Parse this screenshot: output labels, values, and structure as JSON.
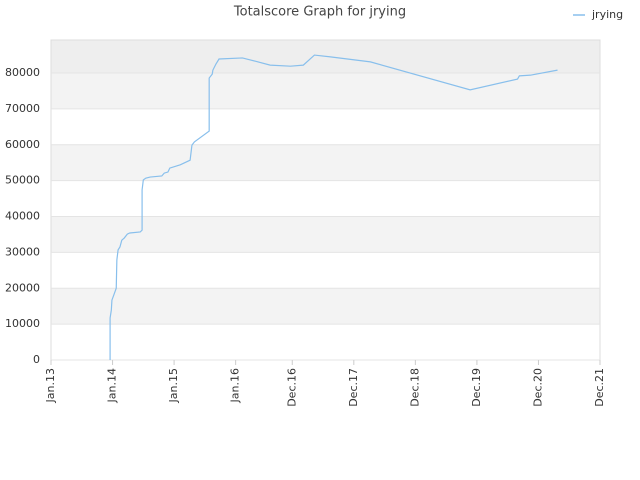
{
  "chart_data": {
    "type": "line",
    "title": "Totalscore Graph for jrying",
    "x": [
      2013.96,
      2013.96,
      2013.98,
      2013.99,
      2014.02,
      2014.06,
      2014.07,
      2014.09,
      2014.12,
      2014.15,
      2014.19,
      2014.24,
      2014.28,
      2014.45,
      2014.48,
      2014.48,
      2014.5,
      2014.54,
      2014.61,
      2014.8,
      2014.84,
      2014.9,
      2014.93,
      2015.1,
      2015.26,
      2015.29,
      2015.33,
      2015.57,
      2015.57,
      2015.62,
      2015.63,
      2015.68,
      2015.73,
      2016.11,
      2016.32,
      2016.56,
      2016.89,
      2017.1,
      2017.28,
      2017.54,
      2018.19,
      2019.81,
      2020.58,
      2020.61,
      2020.79,
      2021.23
    ],
    "series": [
      {
        "name": "jrying",
        "color": "#88bfec",
        "values": [
          0,
          11700,
          13900,
          16700,
          18100,
          20000,
          27900,
          30700,
          31500,
          33400,
          34000,
          35100,
          35400,
          35700,
          36200,
          47400,
          50200,
          50700,
          51000,
          51300,
          52100,
          52400,
          53500,
          54400,
          55700,
          59900,
          60800,
          63800,
          78600,
          79700,
          80800,
          82500,
          83900,
          84200,
          83300,
          82200,
          81900,
          82200,
          85000,
          84500,
          83100,
          75300,
          78300,
          79200,
          79400,
          80800
        ]
      }
    ],
    "xlim": [
      2013.0,
      2021.92
    ],
    "xticks": [
      {
        "value": 2013.0,
        "label": "Jan.13"
      },
      {
        "value": 2014.0,
        "label": "Jan.14"
      },
      {
        "value": 2015.0,
        "label": "Jan.15"
      },
      {
        "value": 2016.0,
        "label": "Jan.16"
      },
      {
        "value": 2016.92,
        "label": "Dec.16"
      },
      {
        "value": 2017.92,
        "label": "Dec.17"
      },
      {
        "value": 2018.92,
        "label": "Dec.18"
      },
      {
        "value": 2019.92,
        "label": "Dec.19"
      },
      {
        "value": 2020.92,
        "label": "Dec.20"
      },
      {
        "value": 2021.92,
        "label": "Dec.21"
      }
    ],
    "ylim": [
      0,
      89200
    ],
    "yticks": [
      0,
      10000,
      20000,
      30000,
      40000,
      50000,
      60000,
      70000,
      80000
    ],
    "grid": true,
    "legend": "top-right"
  }
}
